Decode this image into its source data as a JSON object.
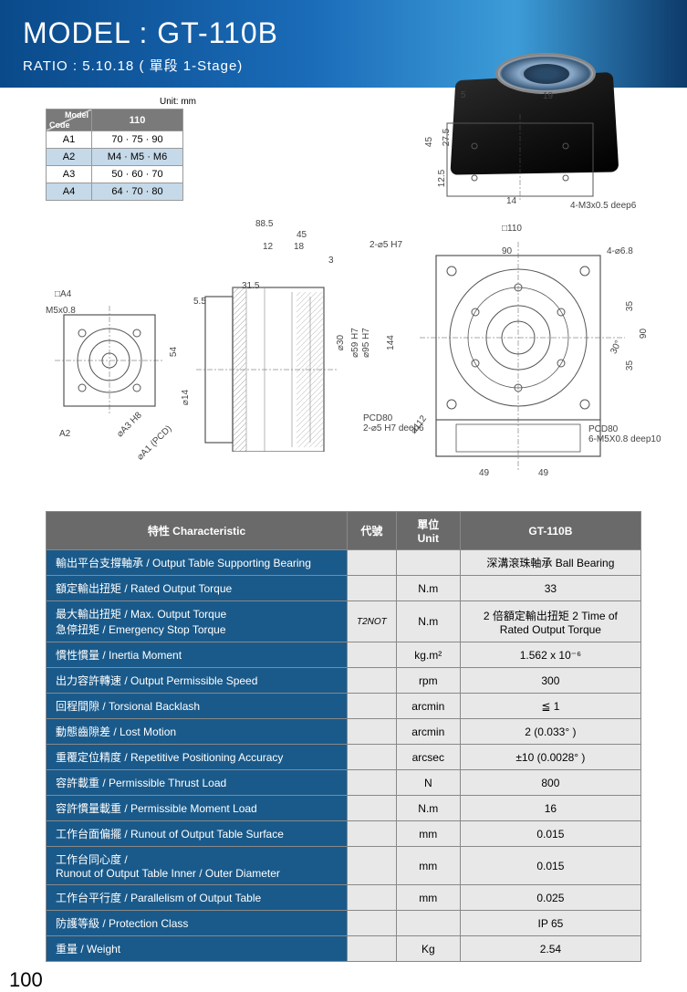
{
  "header": {
    "title": "MODEL : GT-110B",
    "subtitle": "RATIO : 5.10.18 ( 單段 1-Stage)"
  },
  "dimTable": {
    "unit": "Unit: mm",
    "modelLabel": "Model",
    "codeLabel": "Code",
    "modelCol": "110",
    "rows": [
      {
        "code": "A1",
        "val": "70 · 75 · 90",
        "alt": false
      },
      {
        "code": "A2",
        "val": "M4 · M5 · M6",
        "alt": true
      },
      {
        "code": "A3",
        "val": "50 · 60 · 70",
        "alt": false
      },
      {
        "code": "A4",
        "val": "64 · 70 · 80",
        "alt": true
      }
    ]
  },
  "drawing": {
    "labels": {
      "d885": "88.5",
      "d45": "45",
      "d12": "12",
      "d18": "18",
      "d3": "3",
      "d315": "31.5",
      "d55": "5.5",
      "a4": "□A4",
      "m5x08": "M5x0.8",
      "d54": "54",
      "d14": "⌀14",
      "a3": "⌀A3 H8",
      "a1": "⌀A1 (PCD)",
      "a2": "A2",
      "d5": "5",
      "d19": "19",
      "d45b": "45",
      "d275": "27.5",
      "d125": "12.5",
      "d14b": "14",
      "m3": "4-M3x0.5 deep6",
      "sq110": "□110",
      "d25h7": "2-⌀5 H7",
      "d90": "90",
      "d468": "4-⌀6.8",
      "d30": "⌀30",
      "d59": "⌀59 H7",
      "d95": "⌀95 H7",
      "d144": "144",
      "d35": "35",
      "d35b": "35",
      "d90b": "90",
      "deg30": "30°",
      "d112": "⌀112",
      "pcd80a": "PCD80\n2-⌀5 H7 deep6",
      "pcd80b": "PCD80\n6-M5X0.8 deep10",
      "d49a": "49",
      "d49b": "49"
    }
  },
  "specTable": {
    "headers": {
      "char": "特性 Characteristic",
      "code": "代號",
      "unit": "單位 Unit",
      "model": "GT-110B"
    },
    "rows": [
      {
        "label": "輸出平台支撐軸承 / Output Table Supporting Bearing",
        "code": "",
        "unit": "",
        "value": "深溝滾珠軸承 Ball Bearing"
      },
      {
        "label": "額定輸出扭矩 / Rated Output Torque",
        "code": "",
        "unit": "N.m",
        "value": "33"
      },
      {
        "label": "最大輸出扭矩 / Max. Output Torque\n急停扭矩 / Emergency Stop Torque",
        "code": "T2NOT",
        "unit": "N.m",
        "value": "2 倍額定輸出扭矩 2 Time of Rated Output Torque"
      },
      {
        "label": "慣性慣量 / Inertia Moment",
        "code": "",
        "unit": "kg.m²",
        "value": "1.562 x 10⁻⁶"
      },
      {
        "label": "出力容許轉速 / Output Permissible Speed",
        "code": "",
        "unit": "rpm",
        "value": "300"
      },
      {
        "label": "回程間隙 / Torsional Backlash",
        "code": "",
        "unit": "arcmin",
        "value": "≦ 1"
      },
      {
        "label": "動態齒隙差 / Lost Motion",
        "code": "",
        "unit": "arcmin",
        "value": "2 (0.033° )"
      },
      {
        "label": "重覆定位精度 / Repetitive Positioning Accuracy",
        "code": "",
        "unit": "arcsec",
        "value": "±10 (0.0028° )"
      },
      {
        "label": "容許載重 / Permissible Thrust Load",
        "code": "",
        "unit": "N",
        "value": "800"
      },
      {
        "label": "容許慣量載重 / Permissible Moment Load",
        "code": "",
        "unit": "N.m",
        "value": "16"
      },
      {
        "label": "工作台面偏擺 / Runout of Output Table Surface",
        "code": "",
        "unit": "mm",
        "value": "0.015"
      },
      {
        "label": "工作台同心度 /\nRunout of Output Table Inner / Outer Diameter",
        "code": "",
        "unit": "mm",
        "value": "0.015"
      },
      {
        "label": "工作台平行度 / Parallelism of Output Table",
        "code": "",
        "unit": "mm",
        "value": "0.025"
      },
      {
        "label": "防護等級 / Protection Class",
        "code": "",
        "unit": "",
        "value": "IP 65"
      },
      {
        "label": "重量 / Weight",
        "code": "",
        "unit": "Kg",
        "value": "2.54"
      }
    ]
  },
  "pageNumber": "100"
}
